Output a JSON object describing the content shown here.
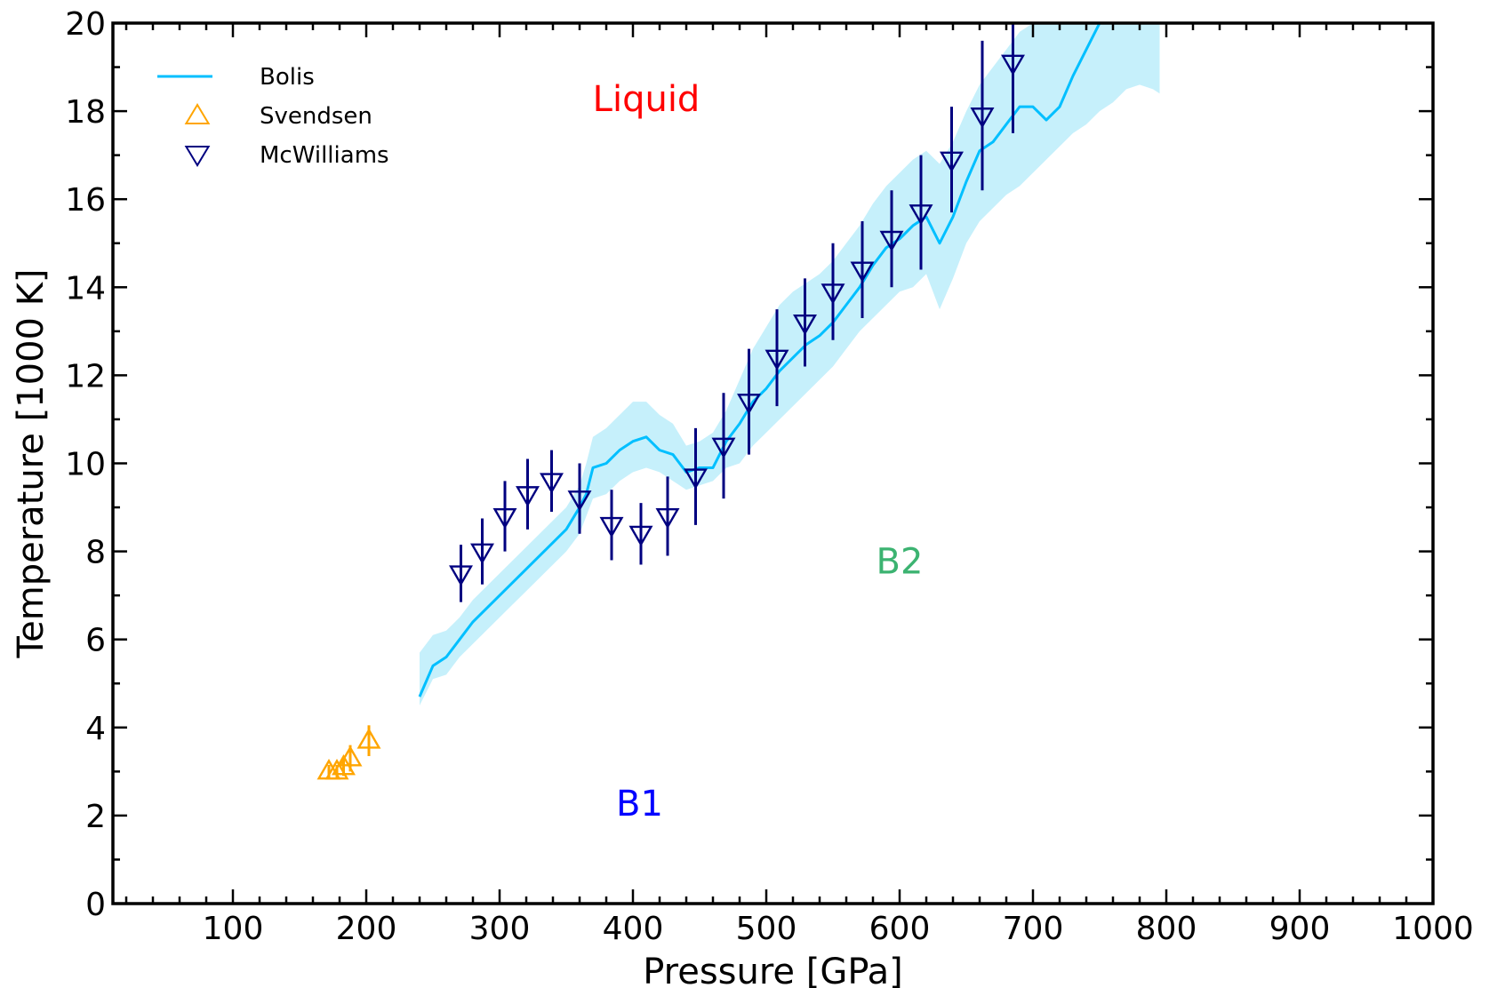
{
  "chart_data": {
    "type": "scatter",
    "title": "",
    "xlabel": "Pressure [GPa]",
    "ylabel": "Temperature [1000 K]",
    "xlim": [
      10,
      1000
    ],
    "ylim": [
      0,
      20
    ],
    "x_ticks": [
      100,
      200,
      300,
      400,
      500,
      600,
      700,
      800,
      900,
      1000
    ],
    "y_ticks": [
      0,
      2,
      4,
      6,
      8,
      10,
      12,
      14,
      16,
      18,
      20
    ],
    "grid": false,
    "legend_position": "top-left",
    "legend": [
      {
        "label": "Bolis",
        "marker": "line",
        "color": "#00bfff"
      },
      {
        "label": "Svendsen",
        "marker": "triangle-up",
        "color": "#ffa500"
      },
      {
        "label": "McWilliams",
        "marker": "triangle-down",
        "color": "#000080"
      }
    ],
    "annotations": [
      {
        "text": "Liquid",
        "x": 410,
        "y": 18.0,
        "color": "#ff0000"
      },
      {
        "text": "B2",
        "x": 600,
        "y": 7.5,
        "color": "#3cb371"
      },
      {
        "text": "B1",
        "x": 405,
        "y": 2.0,
        "color": "#0000ff"
      }
    ],
    "series": [
      {
        "name": "Bolis",
        "kind": "line_with_band",
        "color": "#00bfff",
        "band_color": "#c6f0fb",
        "x": [
          240,
          250,
          260,
          270,
          280,
          290,
          300,
          310,
          320,
          330,
          340,
          350,
          360,
          365,
          370,
          380,
          390,
          400,
          410,
          420,
          430,
          440,
          450,
          460,
          470,
          480,
          490,
          500,
          510,
          520,
          530,
          540,
          550,
          560,
          570,
          580,
          590,
          600,
          610,
          620,
          630,
          640,
          650,
          660,
          670,
          680,
          690,
          700,
          710,
          720,
          730,
          740,
          750,
          760,
          770,
          780,
          790,
          795
        ],
        "y": [
          4.7,
          5.4,
          5.6,
          6.0,
          6.4,
          6.7,
          7.0,
          7.3,
          7.6,
          7.9,
          8.2,
          8.5,
          9.0,
          9.3,
          9.9,
          10.0,
          10.3,
          10.5,
          10.6,
          10.3,
          10.2,
          9.8,
          9.9,
          9.9,
          10.5,
          10.9,
          11.4,
          11.7,
          12.1,
          12.4,
          12.7,
          12.9,
          13.2,
          13.6,
          14.0,
          14.5,
          14.9,
          15.1,
          15.4,
          15.6,
          15.0,
          15.6,
          16.4,
          17.1,
          17.3,
          17.7,
          18.1,
          18.1,
          17.8,
          18.1,
          18.8,
          19.4,
          20.0,
          20.0,
          20.0,
          20.0,
          20.0,
          20.0
        ],
        "y_lower": [
          4.5,
          5.1,
          5.2,
          5.6,
          5.9,
          6.2,
          6.5,
          6.8,
          7.1,
          7.4,
          7.7,
          8.0,
          8.4,
          8.8,
          9.2,
          9.3,
          9.6,
          9.8,
          9.9,
          9.8,
          9.6,
          9.4,
          9.5,
          9.6,
          9.9,
          10.0,
          10.4,
          10.7,
          11.0,
          11.3,
          11.6,
          11.9,
          12.2,
          12.6,
          13.0,
          13.3,
          13.6,
          13.9,
          14.0,
          14.3,
          13.5,
          14.2,
          15.0,
          15.5,
          15.8,
          16.1,
          16.3,
          16.6,
          16.9,
          17.2,
          17.5,
          17.7,
          18.0,
          18.2,
          18.5,
          18.6,
          18.5,
          18.4
        ],
        "y_upper": [
          5.7,
          6.1,
          6.2,
          6.5,
          6.9,
          7.2,
          7.5,
          7.8,
          8.1,
          8.4,
          8.7,
          9.0,
          9.5,
          10.0,
          10.6,
          10.8,
          11.1,
          11.4,
          11.4,
          11.1,
          10.9,
          10.4,
          10.5,
          10.7,
          11.2,
          11.9,
          12.6,
          13.1,
          13.6,
          13.9,
          14.1,
          14.3,
          14.6,
          15.0,
          15.4,
          15.9,
          16.3,
          16.6,
          16.9,
          17.1,
          16.8,
          17.3,
          18.0,
          18.6,
          19.0,
          19.4,
          19.8,
          20.0,
          20.0,
          20.0,
          20.0,
          20.0,
          20.0,
          20.0,
          20.0,
          20.0,
          20.0,
          20.0
        ]
      },
      {
        "name": "Svendsen",
        "kind": "scatter",
        "marker": "triangle-up",
        "color": "#ffa500",
        "x": [
          172,
          178,
          183,
          188,
          202
        ],
        "y": [
          3.0,
          3.0,
          3.1,
          3.3,
          3.7
        ],
        "yerr": [
          0.15,
          0.15,
          0.2,
          0.3,
          0.35
        ]
      },
      {
        "name": "McWilliams",
        "kind": "scatter",
        "marker": "triangle-down",
        "color": "#000080",
        "x": [
          271,
          287,
          304,
          321,
          339,
          360,
          384,
          406,
          426,
          447,
          468,
          487,
          508,
          529,
          550,
          572,
          594,
          616,
          639,
          662,
          685
        ],
        "y": [
          7.5,
          8.0,
          8.8,
          9.3,
          9.6,
          9.2,
          8.6,
          8.4,
          8.8,
          9.7,
          10.4,
          11.4,
          12.4,
          13.2,
          13.9,
          14.4,
          15.1,
          15.7,
          16.9,
          17.9,
          19.1
        ],
        "yerr": [
          0.65,
          0.75,
          0.8,
          0.8,
          0.7,
          0.8,
          0.8,
          0.7,
          0.9,
          1.1,
          1.2,
          1.2,
          1.1,
          1.0,
          1.1,
          1.1,
          1.1,
          1.3,
          1.2,
          1.7,
          1.6
        ]
      }
    ]
  }
}
